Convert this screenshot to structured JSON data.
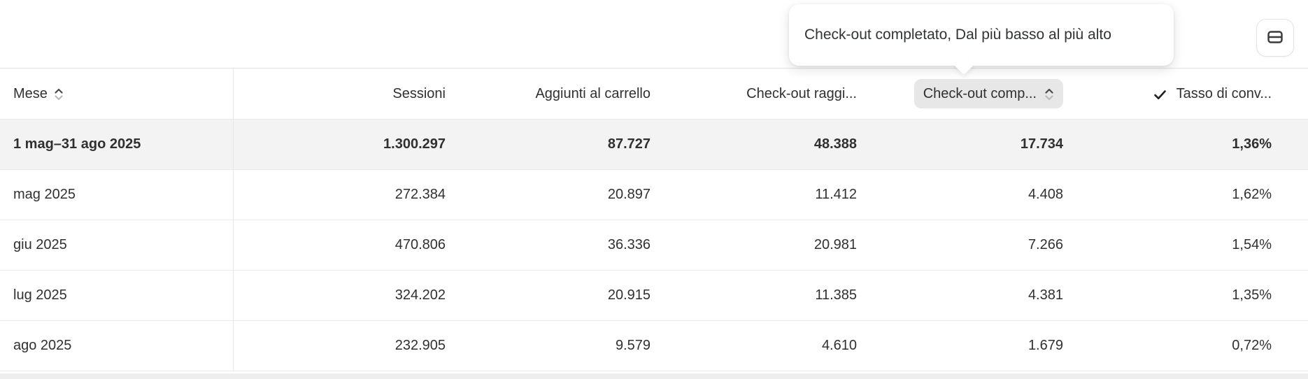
{
  "tooltip": {
    "text": "Check-out completato, Dal più basso al più alto"
  },
  "header_bar": {
    "table_view_button_icon": "table-rows-icon"
  },
  "table": {
    "columns": [
      {
        "id": "mese",
        "label": "Mese",
        "align": "left",
        "sortable": true
      },
      {
        "id": "sessioni",
        "label": "Sessioni",
        "align": "right"
      },
      {
        "id": "aggiunti_al_carrello",
        "label": "Aggiunti al carrello",
        "align": "right"
      },
      {
        "id": "checkout_raggiunto",
        "label": "Check-out raggi...",
        "align": "right"
      },
      {
        "id": "checkout_completato",
        "label": "Check-out comp...",
        "align": "right",
        "sorted": "ascending"
      },
      {
        "id": "tasso_di_conversione",
        "label": "Tasso di conv...",
        "align": "right",
        "checked": true
      }
    ],
    "rows": [
      {
        "label": "1 mag–31 ago 2025",
        "highlighted": true,
        "values": [
          "1.300.297",
          "87.727",
          "48.388",
          "17.734",
          "1,36%"
        ]
      },
      {
        "label": "mag 2025",
        "highlighted": false,
        "values": [
          "272.384",
          "20.897",
          "11.412",
          "4.408",
          "1,62%"
        ]
      },
      {
        "label": "giu 2025",
        "highlighted": false,
        "values": [
          "470.806",
          "36.336",
          "20.981",
          "7.266",
          "1,54%"
        ]
      },
      {
        "label": "lug 2025",
        "highlighted": false,
        "values": [
          "324.202",
          "20.915",
          "11.385",
          "4.381",
          "1,35%"
        ]
      },
      {
        "label": "ago 2025",
        "highlighted": false,
        "values": [
          "232.905",
          "9.579",
          "4.610",
          "1.679",
          "0,72%"
        ]
      }
    ]
  },
  "colors": {
    "highlight_row_bg": "#f3f3f3",
    "row_border": "#e9e9e9",
    "pill_bg": "#e7e7e7",
    "text": "#303030",
    "sort_chevron_active": "#4a4a4a",
    "sort_chevron_inactive": "#b9b9b9",
    "bottom_strip": "#eeeeee"
  }
}
